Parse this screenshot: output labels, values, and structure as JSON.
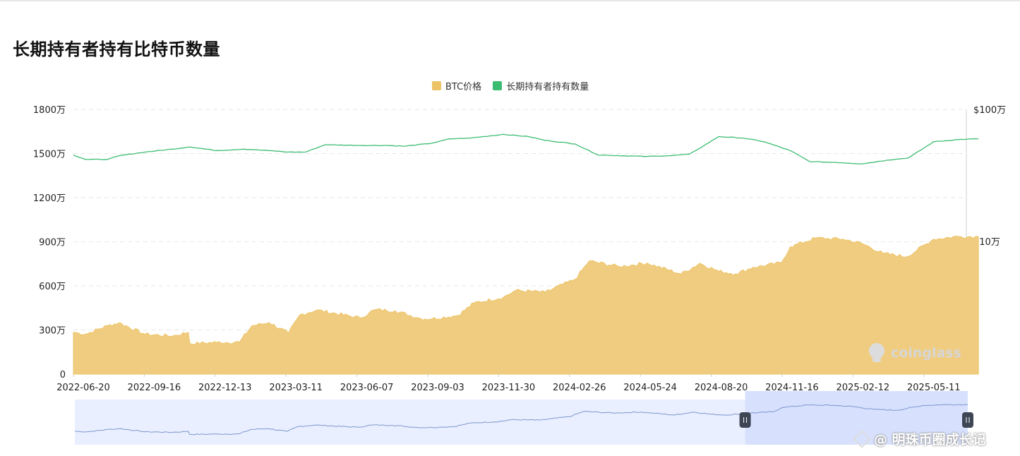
{
  "title": "长期持有者持有比特币数量",
  "legend": {
    "btc_label": "BTC价格",
    "holder_label": "长期持有者持有数量"
  },
  "colors": {
    "btc": "#ecc467",
    "btc_fill": "#f0cc80",
    "holder": "#3cbc71",
    "nav_line": "#7e97cc",
    "nav_fill": "#e9efff",
    "nav_selected": "#d7e1fe",
    "grid": "#e6e6e6"
  },
  "left_axis": {
    "ticks": [
      "0",
      "300万",
      "600万",
      "900万",
      "1200万",
      "1500万",
      "1800万"
    ]
  },
  "right_axis": {
    "ticks": [
      "$10万",
      "$100万"
    ]
  },
  "x_axis": {
    "labels": [
      "2022-06-20",
      "2022-09-16",
      "2022-12-13",
      "2023-03-11",
      "2023-06-07",
      "2023-09-03",
      "2023-11-30",
      "2024-02-26",
      "2024-05-24",
      "2024-08-20",
      "2024-11-16",
      "2025-02-12",
      "2025-05-11"
    ]
  },
  "brand": "coinglass",
  "watermark": "@ 明珠币圈成长记",
  "chart_data": {
    "type": "line",
    "title": "长期持有者持有比特币数量",
    "x": [
      "2022-06-20",
      "2022-09-16",
      "2022-12-13",
      "2023-03-11",
      "2023-06-07",
      "2023-09-03",
      "2023-11-30",
      "2024-02-26",
      "2024-05-24",
      "2024-08-20",
      "2024-11-16",
      "2025-02-12",
      "2025-05-11"
    ],
    "grid": true,
    "legend_position": "top-center",
    "y_left": {
      "ticks": [
        0,
        3000000,
        6000000,
        9000000,
        12000000,
        15000000,
        18000000
      ],
      "range": [
        0,
        18000000
      ]
    },
    "y_right": {
      "scale": "log",
      "ticks": [
        100000,
        1000000
      ]
    },
    "series": [
      {
        "name": "长期持有者持有数量",
        "axis": "left",
        "type": "line",
        "points": [
          [
            "2022-06-20",
            14900000
          ],
          [
            "2022-07-05",
            14600000
          ],
          [
            "2022-08-01",
            14600000
          ],
          [
            "2022-08-15",
            14850000
          ],
          [
            "2022-09-16",
            15100000
          ],
          [
            "2022-10-20",
            15300000
          ],
          [
            "2022-11-10",
            15450000
          ],
          [
            "2022-12-13",
            15200000
          ],
          [
            "2023-01-15",
            15300000
          ],
          [
            "2023-02-15",
            15200000
          ],
          [
            "2023-03-11",
            15100000
          ],
          [
            "2023-04-01",
            15100000
          ],
          [
            "2023-04-25",
            15600000
          ],
          [
            "2023-06-07",
            15550000
          ],
          [
            "2023-07-10",
            15550000
          ],
          [
            "2023-08-01",
            15500000
          ],
          [
            "2023-09-03",
            15700000
          ],
          [
            "2023-09-25",
            16000000
          ],
          [
            "2023-10-20",
            16050000
          ],
          [
            "2023-11-30",
            16300000
          ],
          [
            "2023-12-31",
            16150000
          ],
          [
            "2024-01-20",
            15900000
          ],
          [
            "2024-02-26",
            15650000
          ],
          [
            "2024-03-25",
            14900000
          ],
          [
            "2024-05-24",
            14800000
          ],
          [
            "2024-06-20",
            14850000
          ],
          [
            "2024-07-15",
            14950000
          ],
          [
            "2024-08-01",
            15500000
          ],
          [
            "2024-08-20",
            16150000
          ],
          [
            "2024-09-20",
            16050000
          ],
          [
            "2024-10-15",
            15800000
          ],
          [
            "2024-11-16",
            15200000
          ],
          [
            "2024-12-10",
            14450000
          ],
          [
            "2025-01-10",
            14400000
          ],
          [
            "2025-02-12",
            14300000
          ],
          [
            "2025-03-15",
            14550000
          ],
          [
            "2025-04-10",
            14700000
          ],
          [
            "2025-05-11",
            15800000
          ],
          [
            "2025-06-10",
            15950000
          ],
          [
            "2025-07-05",
            16000000
          ]
        ]
      },
      {
        "name": "BTC价格",
        "axis": "right",
        "type": "area",
        "points": [
          [
            "2022-06-20",
            20500
          ],
          [
            "2022-07-05",
            19800
          ],
          [
            "2022-08-01",
            23000
          ],
          [
            "2022-08-15",
            24200
          ],
          [
            "2022-09-16",
            19800
          ],
          [
            "2022-10-20",
            19200
          ],
          [
            "2022-11-08",
            20500
          ],
          [
            "2022-11-10",
            16800
          ],
          [
            "2022-12-13",
            17200
          ],
          [
            "2023-01-10",
            17300
          ],
          [
            "2023-01-25",
            22900
          ],
          [
            "2023-02-15",
            24300
          ],
          [
            "2023-03-11",
            20200
          ],
          [
            "2023-03-25",
            27800
          ],
          [
            "2023-04-15",
            30200
          ],
          [
            "2023-06-07",
            26300
          ],
          [
            "2023-06-25",
            30400
          ],
          [
            "2023-07-20",
            29800
          ],
          [
            "2023-08-20",
            26100
          ],
          [
            "2023-09-03",
            25900
          ],
          [
            "2023-10-05",
            27500
          ],
          [
            "2023-10-25",
            34200
          ],
          [
            "2023-11-30",
            37800
          ],
          [
            "2023-12-15",
            42500
          ],
          [
            "2024-01-20",
            41200
          ],
          [
            "2024-02-26",
            51700
          ],
          [
            "2024-03-14",
            71000
          ],
          [
            "2024-04-20",
            64500
          ],
          [
            "2024-05-24",
            68500
          ],
          [
            "2024-07-05",
            56700
          ],
          [
            "2024-07-28",
            68200
          ],
          [
            "2024-08-20",
            59500
          ],
          [
            "2024-09-10",
            56800
          ],
          [
            "2024-10-01",
            63500
          ],
          [
            "2024-11-05",
            68800
          ],
          [
            "2024-11-16",
            91000
          ],
          [
            "2024-12-17",
            106000
          ],
          [
            "2025-01-20",
            104000
          ],
          [
            "2025-02-12",
            96500
          ],
          [
            "2025-03-10",
            81000
          ],
          [
            "2025-04-08",
            76500
          ],
          [
            "2025-05-11",
            104000
          ],
          [
            "2025-06-10",
            109000
          ],
          [
            "2025-07-05",
            108500
          ]
        ]
      }
    ],
    "navigator": {
      "selected_range": [
        "2024-10-01",
        "2025-07-05"
      ]
    }
  }
}
